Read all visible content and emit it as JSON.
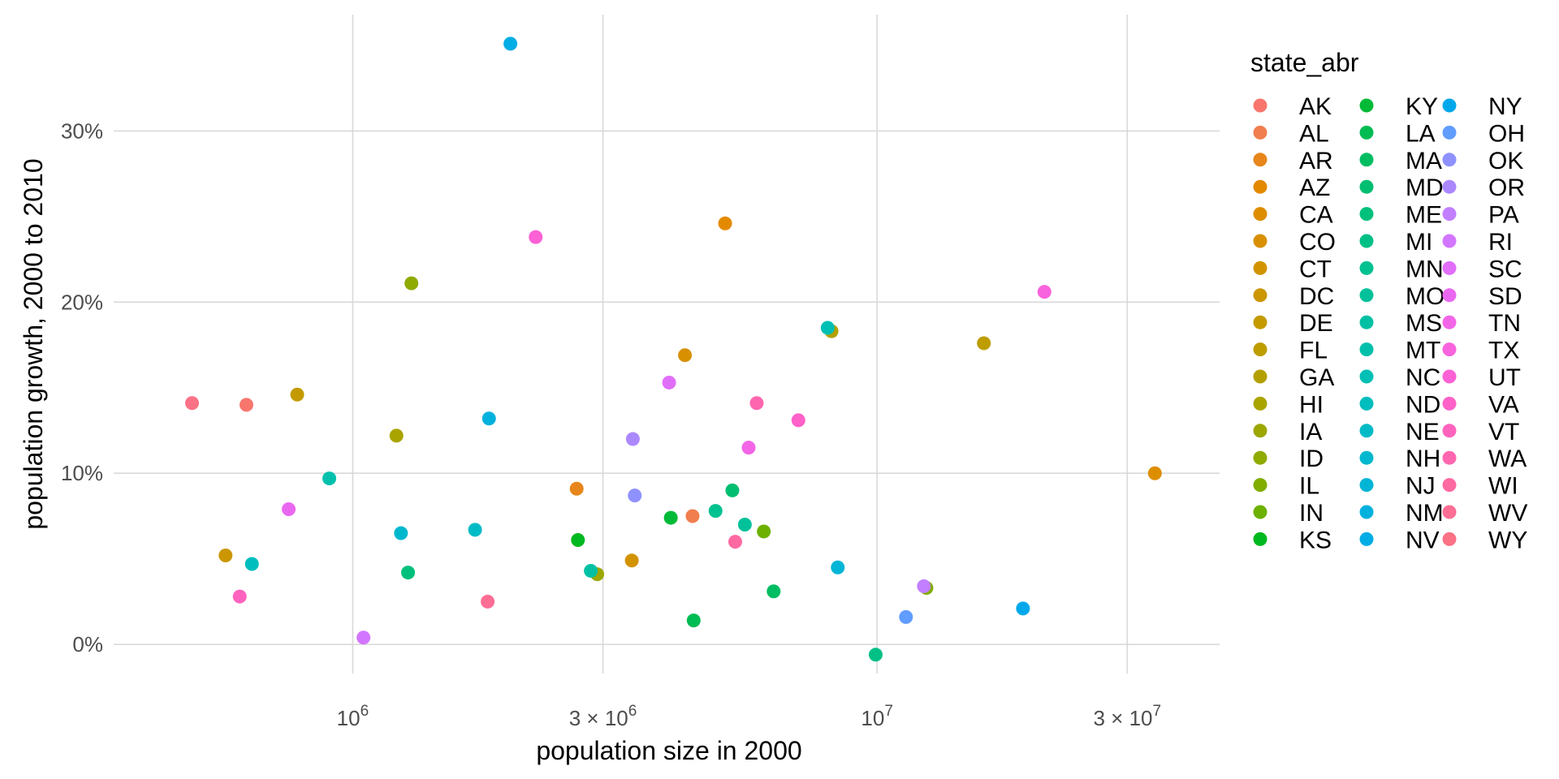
{
  "chart_data": {
    "type": "scatter",
    "xlabel": "population size in 2000",
    "ylabel": "population growth, 2000 to 2010",
    "x_scale": "log10",
    "xlim": [
      350000,
      45000000
    ],
    "ylim": [
      -0.017,
      0.368
    ],
    "x_ticks": [
      {
        "value": 1000000,
        "base": "10",
        "exp": "6"
      },
      {
        "value": 3000000,
        "mult": "3",
        "base": "10",
        "exp": "6"
      },
      {
        "value": 10000000,
        "base": "10",
        "exp": "7"
      },
      {
        "value": 30000000,
        "mult": "3",
        "base": "10",
        "exp": "7"
      }
    ],
    "y_ticks": [
      {
        "value": 0.0,
        "label": "0%"
      },
      {
        "value": 0.1,
        "label": "10%"
      },
      {
        "value": 0.2,
        "label": "20%"
      },
      {
        "value": 0.3,
        "label": "30%"
      }
    ],
    "grid": true,
    "legend": {
      "title": "state_abr",
      "position": "right",
      "columns": 3
    },
    "series": [
      {
        "name": "AK",
        "color": "#F8766D",
        "x": 626932,
        "y": 0.14
      },
      {
        "name": "AL",
        "color": "#F07E4E",
        "x": 4447100,
        "y": 0.075
      },
      {
        "name": "AR",
        "color": "#E7861B",
        "x": 2673400,
        "y": 0.091
      },
      {
        "name": "AZ",
        "color": "#E38900",
        "x": 5130632,
        "y": 0.246
      },
      {
        "name": "CA",
        "color": "#DD8D00",
        "x": 33871648,
        "y": 0.1
      },
      {
        "name": "CO",
        "color": "#D89000",
        "x": 4301261,
        "y": 0.169
      },
      {
        "name": "CT",
        "color": "#D29300",
        "x": 3405565,
        "y": 0.049
      },
      {
        "name": "DC",
        "color": "#CB9600",
        "x": 572059,
        "y": 0.052
      },
      {
        "name": "DE",
        "color": "#C49A00",
        "x": 783600,
        "y": 0.146
      },
      {
        "name": "FL",
        "color": "#BD9D00",
        "x": 15982378,
        "y": 0.176
      },
      {
        "name": "GA",
        "color": "#B3A000",
        "x": 8186453,
        "y": 0.183
      },
      {
        "name": "HI",
        "color": "#A9A400",
        "x": 1211537,
        "y": 0.122
      },
      {
        "name": "IA",
        "color": "#9DA700",
        "x": 2926324,
        "y": 0.041
      },
      {
        "name": "ID",
        "color": "#8FAA00",
        "x": 1293953,
        "y": 0.211
      },
      {
        "name": "IL",
        "color": "#80AD00",
        "x": 12419293,
        "y": 0.033
      },
      {
        "name": "IN",
        "color": "#6DB000",
        "x": 6080485,
        "y": 0.066
      },
      {
        "name": "KS",
        "color": "#00B81F",
        "x": 2688418,
        "y": 0.061
      },
      {
        "name": "KY",
        "color": "#00BA38",
        "x": 4041769,
        "y": 0.074
      },
      {
        "name": "LA",
        "color": "#00BC52",
        "x": 4468976,
        "y": 0.014
      },
      {
        "name": "MA",
        "color": "#00BD62",
        "x": 6349097,
        "y": 0.031
      },
      {
        "name": "MD",
        "color": "#00BE70",
        "x": 5296486,
        "y": 0.09
      },
      {
        "name": "ME",
        "color": "#00C07B",
        "x": 1274923,
        "y": 0.042
      },
      {
        "name": "MI",
        "color": "#00C086",
        "x": 9938444,
        "y": -0.006
      },
      {
        "name": "MN",
        "color": "#00C190",
        "x": 4919479,
        "y": 0.078
      },
      {
        "name": "MO",
        "color": "#00C19A",
        "x": 5595211,
        "y": 0.07
      },
      {
        "name": "MS",
        "color": "#00C0A3",
        "x": 2844658,
        "y": 0.043
      },
      {
        "name": "MT",
        "color": "#00C0AC",
        "x": 902195,
        "y": 0.097
      },
      {
        "name": "NC",
        "color": "#00BFB5",
        "x": 8049313,
        "y": 0.185
      },
      {
        "name": "ND",
        "color": "#00BDBE",
        "x": 642200,
        "y": 0.047
      },
      {
        "name": "NE",
        "color": "#00BBC6",
        "x": 1711263,
        "y": 0.067
      },
      {
        "name": "NH",
        "color": "#00B8CE",
        "x": 1235786,
        "y": 0.065
      },
      {
        "name": "NJ",
        "color": "#00B5D6",
        "x": 8414350,
        "y": 0.045
      },
      {
        "name": "NM",
        "color": "#00B1DD",
        "x": 1819046,
        "y": 0.132
      },
      {
        "name": "NV",
        "color": "#00ADE4",
        "x": 1998257,
        "y": 0.351
      },
      {
        "name": "NY",
        "color": "#00A8EB",
        "x": 18976457,
        "y": 0.021
      },
      {
        "name": "OH",
        "color": "#619CFF",
        "x": 11353140,
        "y": 0.016
      },
      {
        "name": "OK",
        "color": "#8F91FF",
        "x": 3450654,
        "y": 0.087
      },
      {
        "name": "OR",
        "color": "#AC88FF",
        "x": 3421399,
        "y": 0.12
      },
      {
        "name": "PA",
        "color": "#C27FFF",
        "x": 12281054,
        "y": 0.034
      },
      {
        "name": "RI",
        "color": "#D376FF",
        "x": 1048319,
        "y": 0.004
      },
      {
        "name": "SC",
        "color": "#E06EF9",
        "x": 4012012,
        "y": 0.153
      },
      {
        "name": "SD",
        "color": "#EA68F1",
        "x": 754844,
        "y": 0.079
      },
      {
        "name": "TN",
        "color": "#F265E7",
        "x": 5689283,
        "y": 0.115
      },
      {
        "name": "TX",
        "color": "#F863DE",
        "x": 20851820,
        "y": 0.206
      },
      {
        "name": "UT",
        "color": "#FC61D5",
        "x": 2233169,
        "y": 0.238
      },
      {
        "name": "VA",
        "color": "#FF61C9",
        "x": 7078515,
        "y": 0.131
      },
      {
        "name": "VT",
        "color": "#FF63BD",
        "x": 608827,
        "y": 0.028
      },
      {
        "name": "WA",
        "color": "#FF66B0",
        "x": 5894121,
        "y": 0.141
      },
      {
        "name": "WI",
        "color": "#FF69A2",
        "x": 5363675,
        "y": 0.06
      },
      {
        "name": "WV",
        "color": "#FD6D94",
        "x": 1808344,
        "y": 0.025
      },
      {
        "name": "WY",
        "color": "#FB7185",
        "x": 493782,
        "y": 0.141
      }
    ]
  }
}
